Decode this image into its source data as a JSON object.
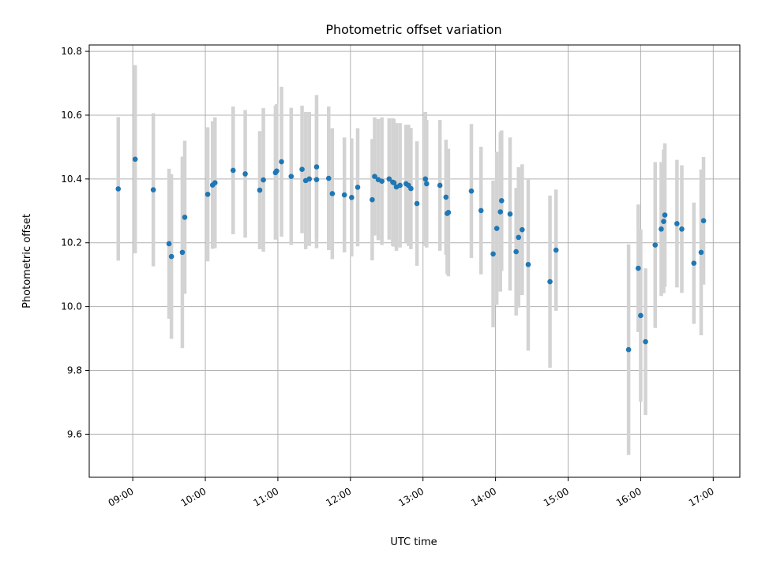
{
  "chart_data": {
    "type": "scatter",
    "title": "Photometric offset variation",
    "xlabel": "UTC time",
    "ylabel": "Photometric offset",
    "x_tick_labels": [
      "09:00",
      "10:00",
      "11:00",
      "12:00",
      "13:00",
      "14:00",
      "15:00",
      "16:00",
      "17:00"
    ],
    "y_tick_labels": [
      "9.6",
      "9.8",
      "10.0",
      "10.2",
      "10.4",
      "10.6",
      "10.8"
    ],
    "x_ticks": [
      "09:00",
      "10:00",
      "11:00",
      "12:00",
      "13:00",
      "14:00",
      "15:00",
      "16:00",
      "17:00"
    ],
    "y_ticks": [
      9.6,
      9.8,
      10.0,
      10.2,
      10.4,
      10.6,
      10.8
    ],
    "xlim": [
      "08:24",
      "17:22"
    ],
    "ylim": [
      9.465,
      10.82
    ],
    "grid": true,
    "colors": {
      "point": "#1f77b4",
      "errorbar": "#d3d3d3",
      "grid": "#b0b0b0"
    },
    "series": [
      {
        "x": [
          "08:48",
          "09:02",
          "09:17",
          "09:30",
          "09:32",
          "09:41",
          "09:43",
          "10:02",
          "10:06",
          "10:08",
          "10:23",
          "10:33",
          "10:45",
          "10:48",
          "10:58",
          "10:59",
          "11:03",
          "11:11",
          "11:20",
          "11:23",
          "11:26",
          "11:32",
          "11:32",
          "11:42",
          "11:45",
          "11:55",
          "12:01",
          "12:06",
          "12:18",
          "12:20",
          "12:23",
          "12:26",
          "12:32",
          "12:35",
          "12:36",
          "12:38",
          "12:41",
          "12:46",
          "12:48",
          "12:50",
          "12:55",
          "13:02",
          "13:03",
          "13:14",
          "13:19",
          "13:20",
          "13:21",
          "13:40",
          "13:48",
          "13:58",
          "14:01",
          "14:04",
          "14:05",
          "14:12",
          "14:17",
          "14:19",
          "14:22",
          "14:27",
          "14:45",
          "14:50",
          "15:50",
          "15:58",
          "16:00",
          "16:04",
          "16:12",
          "16:17",
          "16:19",
          "16:20",
          "16:30",
          "16:34",
          "16:44",
          "16:50",
          "16:52"
        ],
        "y": [
          10.369,
          10.462,
          10.366,
          10.197,
          10.157,
          10.17,
          10.28,
          10.352,
          10.381,
          10.388,
          10.427,
          10.416,
          10.365,
          10.397,
          10.42,
          10.425,
          10.454,
          10.408,
          10.43,
          10.395,
          10.4,
          10.398,
          10.438,
          10.402,
          10.354,
          10.35,
          10.342,
          10.374,
          10.335,
          10.408,
          10.398,
          10.393,
          10.4,
          10.39,
          10.388,
          10.375,
          10.38,
          10.385,
          10.38,
          10.37,
          10.323,
          10.4,
          10.385,
          10.38,
          10.343,
          10.292,
          10.295,
          10.362,
          10.301,
          10.165,
          10.245,
          10.297,
          10.332,
          10.29,
          10.172,
          10.217,
          10.241,
          10.132,
          10.078,
          10.177,
          9.865,
          10.12,
          9.972,
          9.89,
          10.193,
          10.243,
          10.267,
          10.287,
          10.26,
          10.243,
          10.136,
          10.17,
          10.269
        ],
        "err": [
          0.225,
          0.295,
          0.24,
          0.235,
          0.258,
          0.3,
          0.24,
          0.21,
          0.2,
          0.205,
          0.2,
          0.2,
          0.185,
          0.225,
          0.21,
          0.21,
          0.235,
          0.215,
          0.2,
          0.215,
          0.21,
          0.215,
          0.225,
          0.225,
          0.205,
          0.18,
          0.185,
          0.185,
          0.19,
          0.185,
          0.19,
          0.2,
          0.19,
          0.2,
          0.2,
          0.2,
          0.195,
          0.185,
          0.19,
          0.19,
          0.195,
          0.21,
          0.2,
          0.205,
          0.18,
          0.19,
          0.2,
          0.21,
          0.2,
          0.23,
          0.24,
          0.25,
          0.22,
          0.24,
          0.2,
          0.22,
          0.205,
          0.27,
          0.27,
          0.19,
          0.33,
          0.2,
          0.27,
          0.23,
          0.26,
          0.21,
          0.225,
          0.225,
          0.2,
          0.2,
          0.19,
          0.26,
          0.2
        ]
      }
    ]
  }
}
